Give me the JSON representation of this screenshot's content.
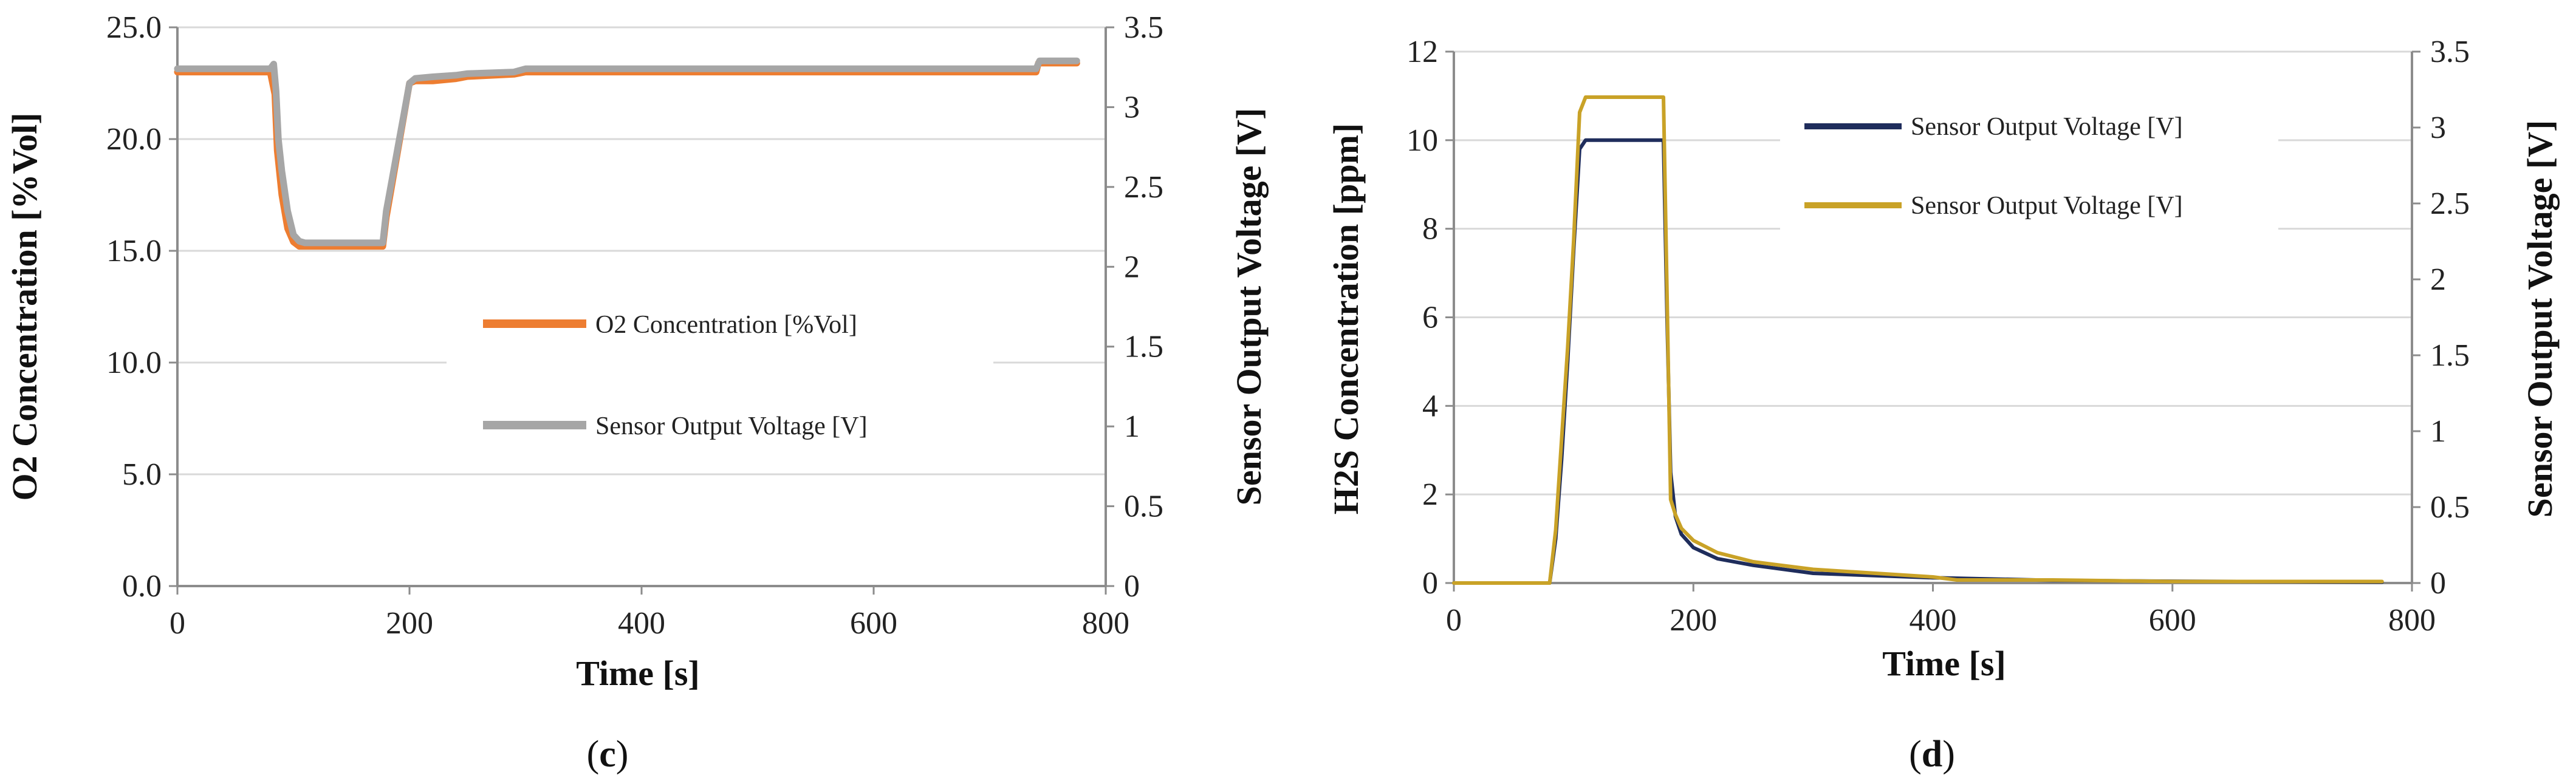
{
  "chart_data": [
    {
      "type": "line",
      "panel_label": "c",
      "xlabel": "Time [s]",
      "ylabel": "O2  Concentration [%Vol]",
      "y2label": "Sensor Output Voltage [V]",
      "xlim": [
        0,
        800
      ],
      "ylim": [
        0,
        25
      ],
      "y2lim": [
        0,
        3.5
      ],
      "x_ticks": [
        "0",
        "200",
        "400",
        "600",
        "800"
      ],
      "y_ticks": [
        "0.0",
        "5.0",
        "10.0",
        "15.0",
        "20.0",
        "25.0"
      ],
      "y2_ticks": [
        "0",
        "0.5",
        "1",
        "1.5",
        "2",
        "2.5",
        "3",
        "3.5"
      ],
      "grid": true,
      "legend": "center-right",
      "series": [
        {
          "name": "O2 Concentration [%Vol]",
          "color": "#ED7D31",
          "axis": "left",
          "x": [
            0,
            80,
            84,
            86,
            90,
            95,
            100,
            105,
            110,
            130,
            150,
            177,
            180,
            185,
            190,
            195,
            200,
            205,
            220,
            240,
            250,
            290,
            300,
            400,
            500,
            600,
            700,
            740,
            742,
            775
          ],
          "y": [
            23.0,
            23.0,
            22.0,
            19.5,
            17.5,
            16.0,
            15.4,
            15.2,
            15.2,
            15.2,
            15.2,
            15.2,
            16.5,
            18.0,
            19.5,
            21.0,
            22.5,
            22.6,
            22.6,
            22.7,
            22.8,
            22.9,
            23.0,
            23.0,
            23.0,
            23.0,
            23.0,
            23.0,
            23.4,
            23.4
          ]
        },
        {
          "name": "Sensor Output Voltage [V]",
          "color": "#A6A6A6",
          "axis": "right",
          "x": [
            0,
            80,
            83,
            85,
            87,
            90,
            95,
            100,
            105,
            110,
            130,
            150,
            177,
            180,
            185,
            190,
            195,
            200,
            205,
            220,
            240,
            250,
            290,
            300,
            400,
            500,
            600,
            700,
            740,
            743,
            775
          ],
          "y": [
            3.24,
            3.24,
            3.27,
            3.1,
            2.8,
            2.6,
            2.35,
            2.2,
            2.16,
            2.15,
            2.15,
            2.15,
            2.15,
            2.35,
            2.55,
            2.75,
            2.95,
            3.15,
            3.18,
            3.19,
            3.2,
            3.21,
            3.22,
            3.24,
            3.24,
            3.24,
            3.24,
            3.24,
            3.24,
            3.29,
            3.29
          ]
        }
      ]
    },
    {
      "type": "line",
      "panel_label": "d",
      "xlabel": "Time [s]",
      "ylabel": "H2S Concentration [ppm]",
      "y2label": "Sensor Output Voltage [V]",
      "xlim": [
        0,
        800
      ],
      "ylim": [
        0,
        12
      ],
      "y2lim": [
        0,
        3.5
      ],
      "x_ticks": [
        "0",
        "200",
        "400",
        "600",
        "800"
      ],
      "y_ticks": [
        "0",
        "2",
        "4",
        "6",
        "8",
        "10",
        "12"
      ],
      "y2_ticks": [
        "0",
        "0.5",
        "1",
        "1.5",
        "2",
        "2.5",
        "3",
        "3.5"
      ],
      "grid": true,
      "legend": "top-right",
      "series": [
        {
          "name": "Sensor Output Voltage [V]",
          "color": "#1F2D5C",
          "axis": "left",
          "x": [
            0,
            80,
            85,
            90,
            95,
            100,
            105,
            110,
            120,
            150,
            175,
            178,
            181,
            185,
            190,
            200,
            220,
            250,
            300,
            400,
            500,
            600,
            700,
            775
          ],
          "y": [
            0,
            0,
            1.0,
            2.8,
            5.0,
            7.5,
            9.8,
            10.0,
            10.0,
            10.0,
            10.0,
            6.0,
            2.5,
            1.5,
            1.1,
            0.8,
            0.55,
            0.4,
            0.22,
            0.12,
            0.06,
            0.04,
            0.03,
            0.02
          ]
        },
        {
          "name": "Sensor Output Voltage [V]",
          "color": "#C9A227",
          "axis": "right",
          "x": [
            0,
            80,
            85,
            90,
            95,
            100,
            105,
            110,
            120,
            150,
            175,
            178,
            181,
            185,
            190,
            200,
            220,
            250,
            300,
            400,
            420,
            500,
            600,
            700,
            775
          ],
          "y": [
            0,
            0,
            0.35,
            0.95,
            1.55,
            2.25,
            3.1,
            3.2,
            3.2,
            3.2,
            3.2,
            1.9,
            0.55,
            0.45,
            0.36,
            0.28,
            0.2,
            0.14,
            0.09,
            0.04,
            0.02,
            0.02,
            0.01,
            0.01,
            0.01
          ]
        }
      ]
    }
  ]
}
